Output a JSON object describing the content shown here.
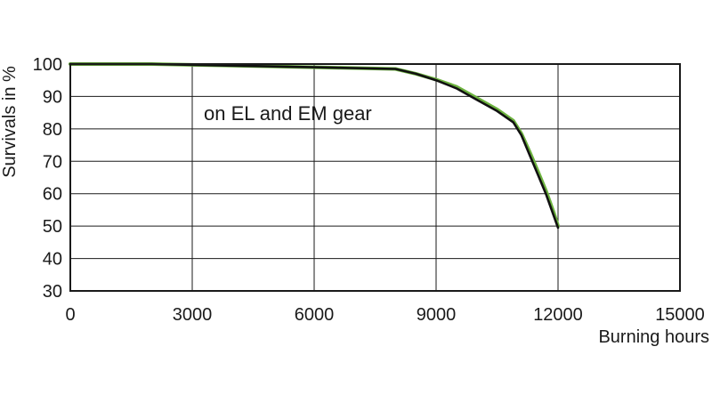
{
  "chart_data": {
    "type": "line",
    "xlabel": "Burning hours",
    "ylabel": "Survivals in %",
    "xlim": [
      0,
      15000
    ],
    "ylim": [
      30,
      100
    ],
    "x_ticks": [
      "0",
      "3000",
      "6000",
      "9000",
      "12000",
      "15000"
    ],
    "y_ticks": [
      "30",
      "40",
      "50",
      "60",
      "70",
      "80",
      "90",
      "100"
    ],
    "grid": true,
    "annotation": "on EL and EM gear",
    "series": [
      {
        "color": "#6db33f",
        "x": [
          0,
          2000,
          4000,
          6000,
          8000,
          8500,
          9000,
          9500,
          10000,
          10500,
          10900,
          11100,
          11300,
          11500,
          11700,
          11900,
          12000
        ],
        "y": [
          100,
          100,
          99.5,
          99,
          98.5,
          97,
          95.2,
          93,
          89.5,
          86,
          82.5,
          78.5,
          73,
          67,
          61,
          54,
          50
        ]
      },
      {
        "color": "#111111",
        "x": [
          0,
          2000,
          4000,
          6000,
          8000,
          8500,
          9000,
          9500,
          10000,
          10500,
          10900,
          11100,
          11300,
          11500,
          11700,
          11900,
          12000
        ],
        "y": [
          100,
          100,
          99.5,
          99,
          98.5,
          97,
          95,
          92.5,
          89,
          85.5,
          82,
          78,
          72,
          66,
          60,
          53,
          49.5
        ]
      }
    ]
  }
}
